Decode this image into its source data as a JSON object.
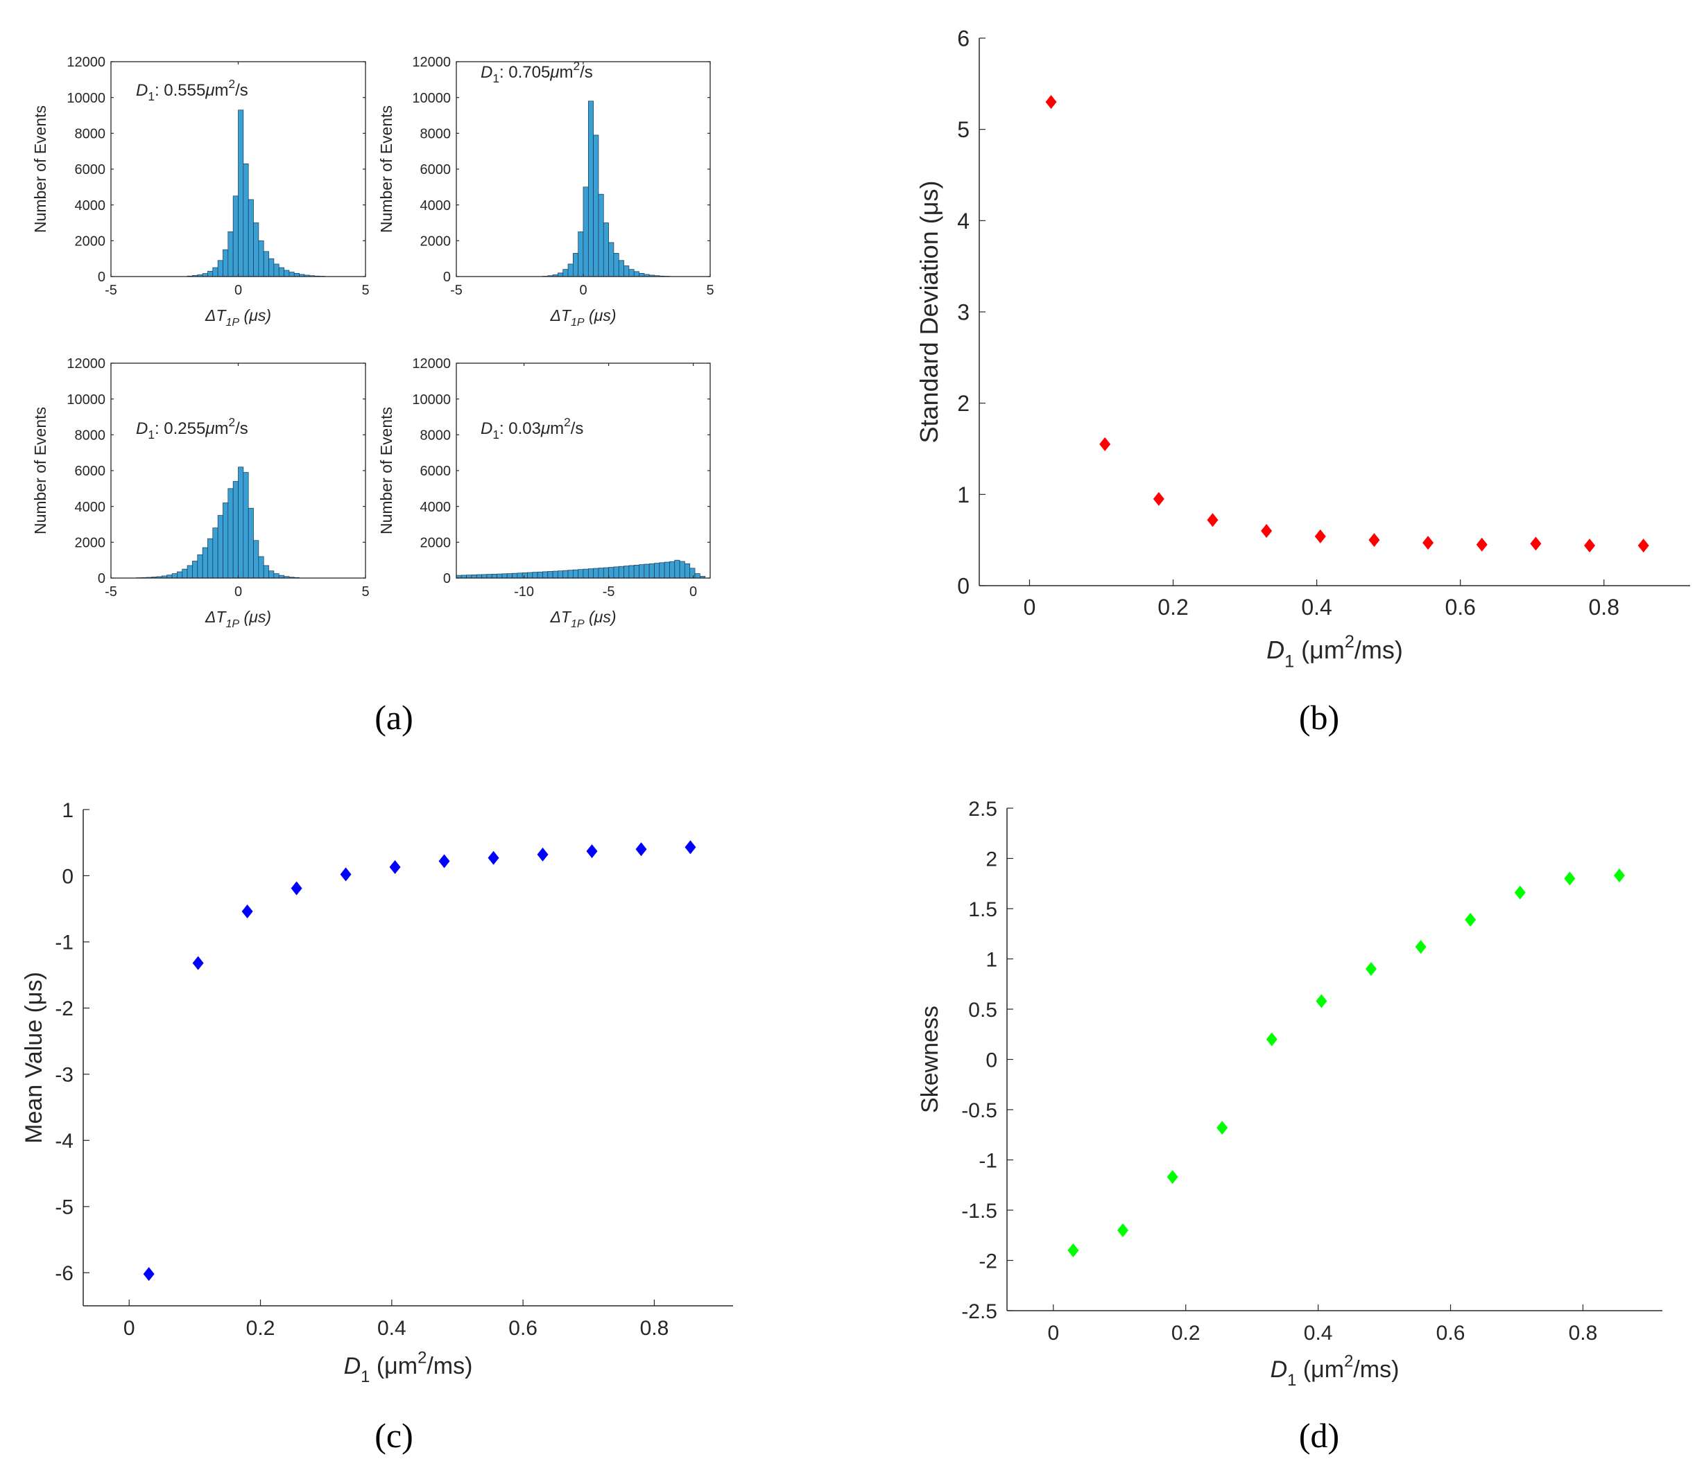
{
  "panel_labels": {
    "a": "(a)",
    "b": "(b)",
    "c": "(c)",
    "d": "(d)"
  },
  "chart_data": [
    {
      "id": "a1",
      "panel": "a",
      "type": "bar",
      "kind": "histogram",
      "annotation": {
        "symbol": "D",
        "sub": "1",
        "text": ": 0.555",
        "unit_mu": "μ",
        "unit_m": "m",
        "unit_sup": "2",
        "unit_tail": "/s"
      },
      "ylabel": "Number of Events",
      "xlabel": {
        "pre": "ΔT",
        "sub": "1P",
        "unit": " (μs)"
      },
      "xlim": [
        -5,
        5
      ],
      "ylim": [
        0,
        12000
      ],
      "xticks": [
        -5,
        0,
        5
      ],
      "xtick_labels": [
        "-5",
        "0",
        "5"
      ],
      "yticks": [
        0,
        2000,
        4000,
        6000,
        8000,
        10000,
        12000
      ],
      "ytick_labels": [
        "0",
        "2000",
        "4000",
        "6000",
        "8000",
        "10000",
        "12000"
      ],
      "bins": [
        -2,
        -1.8,
        -1.6,
        -1.4,
        -1.2,
        -1,
        -0.8,
        -0.6,
        -0.4,
        -0.2,
        0,
        0.2,
        0.4,
        0.6,
        0.8,
        1,
        1.2,
        1.4,
        1.6,
        1.8,
        2,
        2.2,
        2.4,
        2.6,
        2.8,
        3,
        3.2
      ],
      "values": [
        30,
        60,
        100,
        170,
        300,
        500,
        900,
        1500,
        2500,
        4500,
        9300,
        6300,
        4300,
        3000,
        2000,
        1400,
        1000,
        700,
        500,
        350,
        250,
        180,
        120,
        80,
        50,
        30,
        20
      ],
      "bin_width": 0.2,
      "color": "#3aa0d4"
    },
    {
      "id": "a2",
      "panel": "a",
      "type": "bar",
      "kind": "histogram",
      "annotation": {
        "symbol": "D",
        "sub": "1",
        "text": ": 0.705",
        "unit_mu": "μ",
        "unit_m": "m",
        "unit_sup": "2",
        "unit_tail": "/s"
      },
      "ylabel": "Number of Events",
      "xlabel": {
        "pre": "ΔT",
        "sub": "1P",
        "unit": " (μs)"
      },
      "xlim": [
        -5,
        5
      ],
      "ylim": [
        0,
        12000
      ],
      "xticks": [
        -5,
        0,
        5
      ],
      "xtick_labels": [
        "-5",
        "0",
        "5"
      ],
      "yticks": [
        0,
        2000,
        4000,
        6000,
        8000,
        10000,
        12000
      ],
      "ytick_labels": [
        "0",
        "2000",
        "4000",
        "6000",
        "8000",
        "10000",
        "12000"
      ],
      "bins": [
        -1.6,
        -1.4,
        -1.2,
        -1,
        -0.8,
        -0.6,
        -0.4,
        -0.2,
        0,
        0.2,
        0.4,
        0.6,
        0.8,
        1,
        1.2,
        1.4,
        1.6,
        1.8,
        2,
        2.2,
        2.4,
        2.6,
        2.8,
        3,
        3.2
      ],
      "values": [
        20,
        50,
        100,
        200,
        400,
        700,
        1300,
        2500,
        5000,
        9800,
        7900,
        4600,
        3000,
        1900,
        1300,
        900,
        600,
        400,
        280,
        180,
        120,
        80,
        50,
        30,
        20
      ],
      "bin_width": 0.2,
      "color": "#3aa0d4"
    },
    {
      "id": "a3",
      "panel": "a",
      "type": "bar",
      "kind": "histogram",
      "annotation": {
        "symbol": "D",
        "sub": "1",
        "text": ": 0.255",
        "unit_mu": "μ",
        "unit_m": "m",
        "unit_sup": "2",
        "unit_tail": "/s"
      },
      "ylabel": "Number of Events",
      "xlabel": {
        "pre": "ΔT",
        "sub": "1P",
        "unit": " (μs)"
      },
      "xlim": [
        -5,
        5
      ],
      "ylim": [
        0,
        12000
      ],
      "xticks": [
        -5,
        0,
        5
      ],
      "xtick_labels": [
        "-5",
        "0",
        "5"
      ],
      "yticks": [
        0,
        2000,
        4000,
        6000,
        8000,
        10000,
        12000
      ],
      "ytick_labels": [
        "0",
        "2000",
        "4000",
        "6000",
        "8000",
        "10000",
        "12000"
      ],
      "bins": [
        -4,
        -3.8,
        -3.6,
        -3.4,
        -3.2,
        -3,
        -2.8,
        -2.6,
        -2.4,
        -2.2,
        -2,
        -1.8,
        -1.6,
        -1.4,
        -1.2,
        -1,
        -0.8,
        -0.6,
        -0.4,
        -0.2,
        0,
        0.2,
        0.4,
        0.6,
        0.8,
        1,
        1.2,
        1.4,
        1.6,
        1.8,
        2,
        2.2
      ],
      "values": [
        20,
        30,
        40,
        60,
        80,
        120,
        170,
        250,
        350,
        500,
        700,
        950,
        1300,
        1700,
        2200,
        2800,
        3500,
        4200,
        5000,
        5400,
        6200,
        5900,
        3900,
        2100,
        1200,
        700,
        400,
        250,
        150,
        90,
        50,
        30
      ],
      "bin_width": 0.2,
      "color": "#3aa0d4"
    },
    {
      "id": "a4",
      "panel": "a",
      "type": "bar",
      "kind": "histogram",
      "annotation": {
        "symbol": "D",
        "sub": "1",
        "text": ": 0.03",
        "unit_mu": "μ",
        "unit_m": "m",
        "unit_sup": "2",
        "unit_tail": "/s"
      },
      "ylabel": "Number of Events",
      "xlabel": {
        "pre": "ΔT",
        "sub": "1P",
        "unit": " (μs)"
      },
      "xlim": [
        -14,
        1
      ],
      "ylim": [
        0,
        12000
      ],
      "xticks": [
        -10,
        -5,
        0
      ],
      "xtick_labels": [
        "-10",
        "-5",
        "0"
      ],
      "yticks": [
        0,
        2000,
        4000,
        6000,
        8000,
        10000,
        12000
      ],
      "ytick_labels": [
        "0",
        "2000",
        "4000",
        "6000",
        "8000",
        "10000",
        "12000"
      ],
      "bins": [
        -14,
        -13.7,
        -13.4,
        -13.1,
        -12.8,
        -12.5,
        -12.2,
        -11.9,
        -11.6,
        -11.3,
        -11,
        -10.7,
        -10.4,
        -10.1,
        -9.8,
        -9.5,
        -9.2,
        -8.9,
        -8.6,
        -8.3,
        -8,
        -7.7,
        -7.4,
        -7.1,
        -6.8,
        -6.5,
        -6.2,
        -5.9,
        -5.6,
        -5.3,
        -5,
        -4.7,
        -4.4,
        -4.1,
        -3.8,
        -3.5,
        -3.2,
        -2.9,
        -2.6,
        -2.3,
        -2,
        -1.7,
        -1.4,
        -1.1,
        -0.8,
        -0.5,
        -0.2,
        0.1,
        0.4
      ],
      "values": [
        150,
        160,
        170,
        180,
        190,
        200,
        210,
        220,
        230,
        240,
        250,
        265,
        280,
        295,
        310,
        325,
        340,
        355,
        370,
        385,
        400,
        420,
        440,
        460,
        480,
        500,
        520,
        540,
        560,
        580,
        600,
        625,
        650,
        675,
        700,
        725,
        750,
        775,
        800,
        830,
        860,
        890,
        920,
        1000,
        930,
        800,
        550,
        250,
        100
      ],
      "bin_width": 0.3,
      "color": "#3aa0d4"
    },
    {
      "id": "b",
      "panel": "b",
      "type": "scatter",
      "marker": "diamond",
      "color": "#ff0000",
      "ylabel": "Standard Deviation (μs)",
      "xlabel": {
        "pre": "D",
        "sub": "1",
        "unit": " (μm",
        "sup": "2",
        "tail": "/ms)"
      },
      "xlim": [
        -0.07,
        0.92
      ],
      "ylim": [
        0,
        6
      ],
      "xticks": [
        0,
        0.2,
        0.4,
        0.6,
        0.8
      ],
      "xtick_labels": [
        "0",
        "0.2",
        "0.4",
        "0.6",
        "0.8"
      ],
      "yticks": [
        0,
        1,
        2,
        3,
        4,
        5,
        6
      ],
      "ytick_labels": [
        "0",
        "1",
        "2",
        "3",
        "4",
        "5",
        "6"
      ],
      "x": [
        0.03,
        0.105,
        0.18,
        0.255,
        0.33,
        0.405,
        0.48,
        0.555,
        0.63,
        0.705,
        0.78,
        0.855
      ],
      "y": [
        5.3,
        1.55,
        0.95,
        0.72,
        0.6,
        0.54,
        0.5,
        0.47,
        0.45,
        0.46,
        0.44,
        0.44
      ]
    },
    {
      "id": "c",
      "panel": "c",
      "type": "scatter",
      "marker": "diamond",
      "color": "#0000ff",
      "ylabel": "Mean Value (μs)",
      "xlabel": {
        "pre": "D",
        "sub": "1",
        "unit": " (μm",
        "sup": "2",
        "tail": "/ms)"
      },
      "xlim": [
        -0.07,
        0.92
      ],
      "ylim": [
        -6.5,
        1
      ],
      "xticks": [
        0,
        0.2,
        0.4,
        0.6,
        0.8
      ],
      "xtick_labels": [
        "0",
        "0.2",
        "0.4",
        "0.6",
        "0.8"
      ],
      "yticks": [
        -6,
        -5,
        -4,
        -3,
        -2,
        -1,
        0,
        1
      ],
      "ytick_labels": [
        "-6",
        "-5",
        "-4",
        "-3",
        "-2",
        "-1",
        "0",
        "1"
      ],
      "x": [
        0.03,
        0.105,
        0.18,
        0.255,
        0.33,
        0.405,
        0.48,
        0.555,
        0.63,
        0.705,
        0.78,
        0.855
      ],
      "y": [
        -6.02,
        -1.32,
        -0.54,
        -0.19,
        0.02,
        0.13,
        0.22,
        0.27,
        0.32,
        0.37,
        0.4,
        0.43
      ]
    },
    {
      "id": "d",
      "panel": "d",
      "type": "scatter",
      "marker": "diamond",
      "color": "#00ff00",
      "ylabel": "Skewness",
      "xlabel": {
        "pre": "D",
        "sub": "1",
        "unit": " (μm",
        "sup": "2",
        "tail": "/ms)"
      },
      "xlim": [
        -0.07,
        0.92
      ],
      "ylim": [
        -2.5,
        2.5
      ],
      "xticks": [
        0,
        0.2,
        0.4,
        0.6,
        0.8
      ],
      "xtick_labels": [
        "0",
        "0.2",
        "0.4",
        "0.6",
        "0.8"
      ],
      "yticks": [
        -2.5,
        -2,
        -1.5,
        -1,
        -0.5,
        0,
        0.5,
        1,
        1.5,
        2,
        2.5
      ],
      "ytick_labels": [
        "-2.5",
        "-2",
        "-1.5",
        "-1",
        "-0.5",
        "0",
        "0.5",
        "1",
        "1.5",
        "2",
        "2.5"
      ],
      "x": [
        0.03,
        0.105,
        0.18,
        0.255,
        0.33,
        0.405,
        0.48,
        0.555,
        0.63,
        0.705,
        0.78,
        0.855
      ],
      "y": [
        -1.9,
        -1.7,
        -1.17,
        -0.68,
        0.2,
        0.58,
        0.9,
        1.12,
        1.39,
        1.66,
        1.8,
        1.83
      ]
    }
  ]
}
